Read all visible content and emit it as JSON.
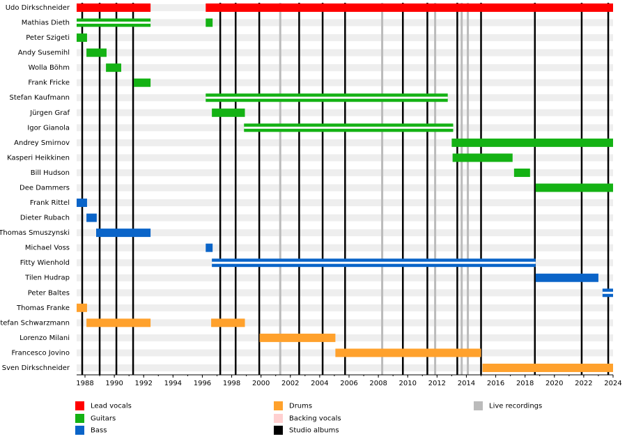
{
  "chart_data": {
    "type": "timeline",
    "xlim": [
      1987.43,
      2024
    ],
    "xticks": [
      1988,
      1990,
      1992,
      1994,
      1996,
      1998,
      2000,
      2002,
      2004,
      2006,
      2008,
      2010,
      2012,
      2014,
      2016,
      2018,
      2020,
      2022,
      2024
    ],
    "legend": [
      {
        "name": "Lead vocals",
        "color": "#ff0000"
      },
      {
        "name": "Guitars",
        "color": "#14b214"
      },
      {
        "name": "Bass",
        "color": "#0a64c8"
      },
      {
        "name": "Drums",
        "color": "#ffa12c"
      },
      {
        "name": "Backing vocals",
        "color": "#ffd0d0"
      },
      {
        "name": "Studio albums",
        "color": "#000000"
      },
      {
        "name": "Live recordings",
        "color": "#bbbbbb"
      }
    ],
    "members": [
      {
        "name": "Udo Dirkschneider",
        "bars": [
          {
            "start": 1987.43,
            "end": 1992.47,
            "role": "Lead vocals"
          },
          {
            "start": 1996.23,
            "end": 2024,
            "role": "Lead vocals"
          }
        ]
      },
      {
        "name": "Mathias Dieth",
        "bars": [
          {
            "start": 1987.43,
            "end": 1992.47,
            "role": "Guitars",
            "backing": true
          },
          {
            "start": 1996.23,
            "end": 1996.7,
            "role": "Guitars"
          }
        ]
      },
      {
        "name": "Peter Szigeti",
        "bars": [
          {
            "start": 1987.43,
            "end": 1988.14,
            "role": "Guitars"
          }
        ]
      },
      {
        "name": "Andy Susemihl",
        "bars": [
          {
            "start": 1988.1,
            "end": 1989.47,
            "role": "Guitars"
          }
        ]
      },
      {
        "name": "Wolla Böhm",
        "bars": [
          {
            "start": 1989.43,
            "end": 1990.47,
            "role": "Guitars"
          }
        ]
      },
      {
        "name": "Frank Fricke",
        "bars": [
          {
            "start": 1991.33,
            "end": 1992.47,
            "role": "Guitars"
          }
        ]
      },
      {
        "name": "Stefan Kaufmann",
        "bars": [
          {
            "start": 1996.23,
            "end": 2012.73,
            "role": "Guitars",
            "backing": true
          }
        ]
      },
      {
        "name": "Jürgen Graf",
        "bars": [
          {
            "start": 1996.65,
            "end": 1998.9,
            "role": "Guitars"
          }
        ]
      },
      {
        "name": "Igor Gianola",
        "bars": [
          {
            "start": 1998.84,
            "end": 2013.1,
            "role": "Guitars",
            "backing": true
          }
        ]
      },
      {
        "name": "Andrey Smirnov",
        "bars": [
          {
            "start": 2013.0,
            "end": 2024,
            "role": "Guitars"
          }
        ]
      },
      {
        "name": "Kasperi Heikkinen",
        "bars": [
          {
            "start": 2013.06,
            "end": 2017.15,
            "role": "Guitars"
          }
        ]
      },
      {
        "name": "Bill Hudson",
        "bars": [
          {
            "start": 2017.25,
            "end": 2018.34,
            "role": "Guitars"
          }
        ]
      },
      {
        "name": "Dee Dammers",
        "bars": [
          {
            "start": 2018.72,
            "end": 2024,
            "role": "Guitars"
          }
        ]
      },
      {
        "name": "Frank Rittel",
        "bars": [
          {
            "start": 1987.43,
            "end": 1988.14,
            "role": "Bass"
          }
        ]
      },
      {
        "name": "Dieter Rubach",
        "bars": [
          {
            "start": 1988.1,
            "end": 1988.8,
            "role": "Bass"
          }
        ]
      },
      {
        "name": "Thomas Smuszynski",
        "bars": [
          {
            "start": 1988.76,
            "end": 1992.47,
            "role": "Bass"
          }
        ]
      },
      {
        "name": "Michael Voss",
        "bars": [
          {
            "start": 1996.23,
            "end": 1996.7,
            "role": "Bass"
          }
        ]
      },
      {
        "name": "Fitty Wienhold",
        "bars": [
          {
            "start": 1996.65,
            "end": 2018.72,
            "role": "Bass",
            "backing": true
          }
        ]
      },
      {
        "name": "Tilen Hudrap",
        "bars": [
          {
            "start": 2018.72,
            "end": 2023.0,
            "role": "Bass"
          }
        ]
      },
      {
        "name": "Peter Baltes",
        "bars": [
          {
            "start": 2023.28,
            "end": 2024,
            "role": "Bass",
            "backing": true
          }
        ]
      },
      {
        "name": "Thomas Franke",
        "bars": [
          {
            "start": 1987.43,
            "end": 1988.14,
            "role": "Drums"
          }
        ]
      },
      {
        "name": "Stefan Schwarzmann",
        "bars": [
          {
            "start": 1988.1,
            "end": 1992.47,
            "role": "Drums"
          },
          {
            "start": 1996.6,
            "end": 1998.9,
            "role": "Drums"
          }
        ]
      },
      {
        "name": "Lorenzo Milani",
        "bars": [
          {
            "start": 1999.9,
            "end": 2005.07,
            "role": "Drums"
          }
        ]
      },
      {
        "name": "Francesco Jovino",
        "bars": [
          {
            "start": 2005.07,
            "end": 2015.0,
            "role": "Drums"
          }
        ]
      },
      {
        "name": "Sven Dirkschneider",
        "bars": [
          {
            "start": 2015.1,
            "end": 2024,
            "role": "Drums"
          }
        ]
      }
    ],
    "studio_albums": [
      1987.81,
      1989.0,
      1990.14,
      1991.28,
      1997.22,
      1998.27,
      1999.88,
      2002.6,
      2004.2,
      2005.73,
      2009.67,
      2011.34,
      2013.38,
      2015.0,
      2018.67,
      2021.86,
      2023.67
    ],
    "live_recordings": [
      2001.31,
      2008.26,
      2011.87,
      2013.68,
      2014.1
    ]
  }
}
